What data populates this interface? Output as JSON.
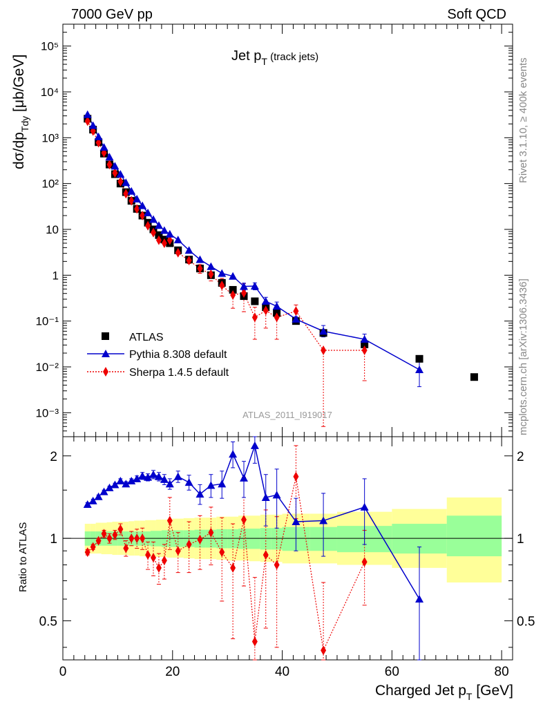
{
  "header": {
    "left": "7000 GeV pp",
    "right": "Soft QCD"
  },
  "side_labels": {
    "rivet": "Rivet 3.1.10, ≥ 400k events",
    "mcplots": "mcplots.cern.ch [arXiv:1306.3436]"
  },
  "analysis_id": "ATLAS_2011_I919017",
  "chart_data": [
    {
      "type": "scatter",
      "panel": "main",
      "title": "Jet p",
      "title_sub": "T",
      "title_suffix": " (track jets)",
      "ylabel": "dσ/dp",
      "ylabel_sub": "Tdy",
      "ylabel_suffix": " [μb/GeV]",
      "yscale": "log",
      "xlim": [
        0,
        82
      ],
      "ylim": [
        0.0003,
        300000
      ],
      "ytick_labels": [
        "10⁻³",
        "10⁻²",
        "10⁻¹",
        "1",
        "10",
        "10²",
        "10³",
        "10⁴",
        "10⁵"
      ],
      "ytick_values": [
        0.001,
        0.01,
        0.1,
        1,
        10,
        100,
        1000,
        10000,
        100000
      ],
      "legend": {
        "position": "lower-left",
        "entries": [
          "ATLAS",
          "Pythia 8.308 default",
          "Sherpa 1.4.5 default"
        ]
      },
      "series": [
        {
          "name": "ATLAS",
          "x": [
            4.5,
            5.5,
            6.5,
            7.5,
            8.5,
            9.5,
            10.5,
            11.5,
            12.5,
            13.5,
            14.5,
            15.5,
            16.5,
            17.5,
            18.5,
            19.5,
            21,
            23,
            25,
            27,
            29,
            31,
            33,
            35,
            37,
            39,
            42.5,
            47.5,
            55,
            65,
            75
          ],
          "y": [
            2600,
            1500,
            800,
            450,
            260,
            160,
            100,
            65,
            42,
            28,
            20,
            14,
            10,
            7.5,
            6,
            5,
            3.5,
            2.2,
            1.4,
            1.0,
            0.68,
            0.48,
            0.35,
            0.27,
            0.2,
            0.15,
            0.1,
            0.055,
            0.031,
            0.015,
            0.006
          ]
        },
        {
          "name": "Pythia 8.308 default",
          "x": [
            4.5,
            5.5,
            6.5,
            7.5,
            8.5,
            9.5,
            10.5,
            11.5,
            12.5,
            13.5,
            14.5,
            15.5,
            16.5,
            17.5,
            18.5,
            19.5,
            21,
            23,
            25,
            27,
            29,
            31,
            33,
            35,
            37,
            39,
            42.5,
            47.5,
            55,
            65
          ],
          "y": [
            3200,
            1850,
            1050,
            620,
            380,
            240,
            160,
            105,
            68,
            46,
            33,
            23,
            16.5,
            12.2,
            9.5,
            7.9,
            5.9,
            3.5,
            2.2,
            1.55,
            1.1,
            0.95,
            0.57,
            0.58,
            0.27,
            0.21,
            0.11,
            0.06,
            0.04,
            0.0087
          ],
          "err_lo": [
            0,
            0,
            0,
            0,
            0,
            0,
            0,
            0,
            0,
            0,
            0,
            0,
            0,
            0,
            0,
            0,
            0,
            0,
            0,
            0,
            0,
            0,
            0.1,
            0.1,
            0.06,
            0.05,
            0.015,
            0.015,
            0.012,
            0.005
          ],
          "err_hi": [
            0,
            0,
            0,
            0,
            0,
            0,
            0,
            0,
            0,
            0,
            0,
            0,
            0,
            0,
            0,
            0,
            0,
            0,
            0,
            0,
            0,
            0,
            0.1,
            0.1,
            0.06,
            0.05,
            0.015,
            0.02,
            0.012,
            0.008
          ]
        },
        {
          "name": "Sherpa 1.4.5 default",
          "x": [
            4.5,
            5.5,
            6.5,
            7.5,
            8.5,
            9.5,
            10.5,
            11.5,
            12.5,
            13.5,
            14.5,
            15.5,
            16.5,
            17.5,
            18.5,
            19.5,
            21,
            23,
            25,
            27,
            29,
            31,
            33,
            35,
            37,
            39,
            42.5,
            47.5,
            55
          ],
          "y": [
            2300,
            1400,
            780,
            470,
            260,
            170,
            110,
            60,
            42,
            28,
            20,
            12,
            8.5,
            5.8,
            5.0,
            5.8,
            3.1,
            2.1,
            1.4,
            1.05,
            0.6,
            0.37,
            0.41,
            0.12,
            0.17,
            0.12,
            0.165,
            0.023,
            0.023
          ],
          "err_lo": [
            0,
            0,
            0,
            0,
            0,
            0,
            0,
            0,
            0,
            0,
            0,
            0,
            0,
            0,
            0,
            0,
            0,
            0.3,
            0.3,
            0.3,
            0.25,
            0.18,
            0.25,
            0.08,
            0.1,
            0.08,
            0.05,
            0.0225,
            0.018
          ],
          "err_hi": [
            0,
            0,
            0,
            0,
            0,
            0,
            0,
            0,
            0,
            0,
            0,
            0,
            0,
            0,
            0,
            0,
            0,
            0.3,
            0.3,
            0.3,
            0.25,
            0.18,
            0.25,
            0.08,
            0.1,
            0.08,
            0.06,
            0.0,
            0.0
          ]
        }
      ]
    },
    {
      "type": "scatter",
      "panel": "ratio",
      "ylabel": "Ratio to ATLAS",
      "xlabel": "Charged Jet p",
      "xlabel_sub": "T",
      "xlabel_suffix": " [GeV]",
      "yscale": "log",
      "xlim": [
        0,
        82
      ],
      "ylim": [
        0.36,
        2.35
      ],
      "xtick_labels": [
        "0",
        "20",
        "40",
        "60",
        "80"
      ],
      "xtick_values": [
        0,
        20,
        40,
        60,
        80
      ],
      "ytick_labels": [
        "0.5",
        "1",
        "2"
      ],
      "ytick_values": [
        0.5,
        1,
        2
      ],
      "reference_line": 1,
      "bands": {
        "x_edges": [
          4,
          5,
          6,
          7,
          8,
          9,
          10,
          11,
          12,
          13,
          14,
          15,
          16,
          17,
          18,
          19,
          20,
          22,
          24,
          26,
          28,
          30,
          32,
          34,
          36,
          38,
          40,
          45,
          50,
          60,
          70,
          80
        ],
        "stat_lo": [
          0.94,
          0.94,
          0.94,
          0.94,
          0.94,
          0.94,
          0.94,
          0.94,
          0.94,
          0.94,
          0.94,
          0.94,
          0.935,
          0.935,
          0.93,
          0.93,
          0.93,
          0.93,
          0.925,
          0.925,
          0.92,
          0.92,
          0.915,
          0.915,
          0.91,
          0.91,
          0.9,
          0.9,
          0.89,
          0.88,
          0.86
        ],
        "stat_hi": [
          1.06,
          1.06,
          1.06,
          1.06,
          1.06,
          1.06,
          1.06,
          1.06,
          1.06,
          1.06,
          1.06,
          1.06,
          1.065,
          1.065,
          1.07,
          1.07,
          1.07,
          1.07,
          1.075,
          1.075,
          1.08,
          1.08,
          1.085,
          1.085,
          1.09,
          1.09,
          1.1,
          1.1,
          1.11,
          1.13,
          1.21
        ],
        "syst_lo": [
          0.88,
          0.88,
          0.88,
          0.875,
          0.875,
          0.87,
          0.87,
          0.87,
          0.865,
          0.865,
          0.86,
          0.86,
          0.86,
          0.855,
          0.855,
          0.85,
          0.85,
          0.845,
          0.84,
          0.84,
          0.835,
          0.83,
          0.83,
          0.825,
          0.82,
          0.82,
          0.81,
          0.81,
          0.8,
          0.78,
          0.69
        ],
        "syst_hi": [
          1.13,
          1.13,
          1.14,
          1.14,
          1.145,
          1.15,
          1.15,
          1.15,
          1.155,
          1.16,
          1.16,
          1.165,
          1.165,
          1.17,
          1.17,
          1.175,
          1.18,
          1.185,
          1.19,
          1.19,
          1.2,
          1.2,
          1.21,
          1.21,
          1.22,
          1.22,
          1.23,
          1.23,
          1.25,
          1.28,
          1.41
        ]
      },
      "series": [
        {
          "name": "Pythia 8.308 default",
          "x": [
            4.5,
            5.5,
            6.5,
            7.5,
            8.5,
            9.5,
            10.5,
            11.5,
            12.5,
            13.5,
            14.5,
            15.5,
            16.5,
            17.5,
            18.5,
            19.5,
            21,
            23,
            25,
            27,
            29,
            31,
            33,
            35,
            37,
            39,
            42.5,
            47.5,
            55,
            65
          ],
          "y": [
            1.33,
            1.37,
            1.42,
            1.48,
            1.53,
            1.57,
            1.62,
            1.58,
            1.62,
            1.65,
            1.69,
            1.67,
            1.71,
            1.68,
            1.64,
            1.58,
            1.68,
            1.6,
            1.45,
            1.56,
            1.58,
            2.03,
            1.66,
            2.18,
            1.41,
            1.44,
            1.15,
            1.16,
            1.3,
            0.6
          ],
          "err": [
            0.02,
            0.02,
            0.02,
            0.02,
            0.02,
            0.02,
            0.03,
            0.03,
            0.03,
            0.04,
            0.05,
            0.05,
            0.06,
            0.06,
            0.07,
            0.07,
            0.08,
            0.1,
            0.12,
            0.15,
            0.18,
            0.22,
            0.25,
            0.3,
            0.3,
            0.35,
            0.25,
            0.3,
            0.35,
            0.33
          ]
        },
        {
          "name": "Sherpa 1.4.5 default",
          "x": [
            4.5,
            5.5,
            6.5,
            7.5,
            8.5,
            9.5,
            10.5,
            11.5,
            12.5,
            13.5,
            14.5,
            15.5,
            16.5,
            17.5,
            18.5,
            19.5,
            21,
            23,
            25,
            27,
            29,
            31,
            33,
            35,
            37,
            39,
            42.5,
            47.5,
            55
          ],
          "y": [
            0.89,
            0.93,
            0.98,
            1.04,
            1.0,
            1.03,
            1.08,
            0.92,
            1.0,
            1.0,
            1.0,
            0.87,
            0.85,
            0.78,
            0.83,
            1.16,
            0.9,
            0.95,
            0.99,
            1.05,
            0.89,
            0.78,
            1.17,
            0.42,
            0.87,
            0.8,
            1.68,
            0.39,
            0.82
          ],
          "err": [
            0.02,
            0.02,
            0.02,
            0.03,
            0.04,
            0.04,
            0.05,
            0.06,
            0.06,
            0.08,
            0.09,
            0.1,
            0.12,
            0.1,
            0.12,
            0.25,
            0.15,
            0.2,
            0.22,
            0.25,
            0.3,
            0.35,
            0.5,
            0.3,
            0.4,
            0.4,
            0.5,
            0.3,
            0.25
          ]
        }
      ]
    }
  ]
}
